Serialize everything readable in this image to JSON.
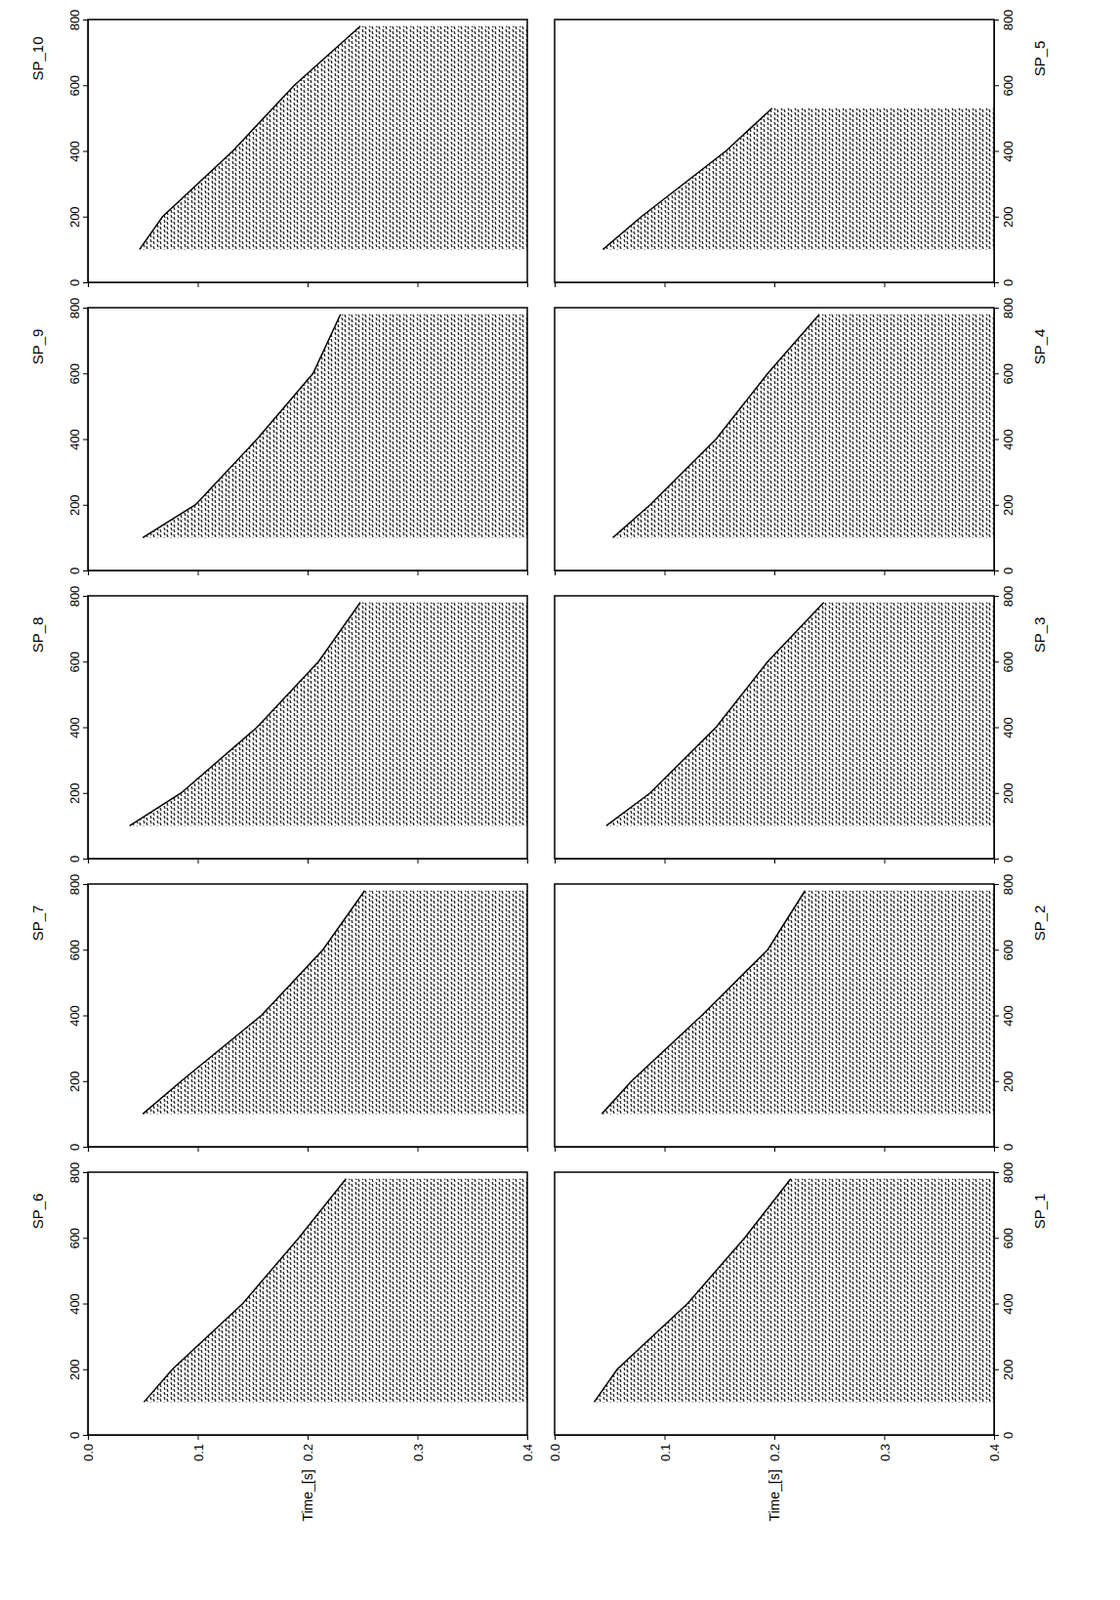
{
  "chart_data": [
    {
      "type": "line",
      "title": "SP_1",
      "x": [
        100,
        200,
        400,
        600,
        780
      ],
      "values": [
        0.036,
        0.057,
        0.121,
        0.173,
        0.215
      ],
      "xlim": [
        0,
        800
      ],
      "xticks": [
        0,
        200,
        400,
        600,
        800
      ],
      "ylim": [
        0,
        0.4
      ],
      "yticks": [
        {
          "value": 0,
          "label": "0.0"
        },
        {
          "value": 0.1,
          "label": "0.1"
        },
        {
          "value": 0.2,
          "label": "0.2"
        },
        {
          "value": 0.3,
          "label": "0.3"
        },
        {
          "value": 0.4,
          "label": "0.4"
        }
      ],
      "y_label": "Time_[s]"
    },
    {
      "type": "line",
      "title": "SP_2",
      "x": [
        100,
        200,
        400,
        600,
        780
      ],
      "values": [
        0.043,
        0.07,
        0.134,
        0.194,
        0.228
      ],
      "xlim": [
        0,
        800
      ],
      "xticks": [
        0,
        200,
        400,
        600,
        800
      ],
      "ylim": [
        0,
        0.4
      ],
      "yticks": [
        {
          "value": 0,
          "label": "0.0"
        },
        {
          "value": 0.1,
          "label": "0.1"
        },
        {
          "value": 0.2,
          "label": "0.2"
        },
        {
          "value": 0.3,
          "label": "0.3"
        },
        {
          "value": 0.4,
          "label": "0.4"
        }
      ],
      "tick_labels": "x"
    },
    {
      "type": "line",
      "title": "SP_3",
      "x": [
        100,
        200,
        400,
        600,
        780
      ],
      "values": [
        0.047,
        0.087,
        0.147,
        0.194,
        0.245
      ],
      "xlim": [
        0,
        800
      ],
      "xticks": [
        0,
        200,
        400,
        600,
        800
      ],
      "ylim": [
        0,
        0.4
      ],
      "yticks": [
        {
          "value": 0,
          "label": "0.0"
        },
        {
          "value": 0.1,
          "label": "0.1"
        },
        {
          "value": 0.2,
          "label": "0.2"
        },
        {
          "value": 0.3,
          "label": "0.3"
        },
        {
          "value": 0.4,
          "label": "0.4"
        }
      ],
      "tick_labels": "x"
    },
    {
      "type": "line",
      "title": "SP_4",
      "x": [
        100,
        200,
        400,
        600,
        780
      ],
      "values": [
        0.053,
        0.087,
        0.147,
        0.194,
        0.241
      ],
      "xlim": [
        0,
        800
      ],
      "xticks": [
        0,
        200,
        400,
        600,
        800
      ],
      "ylim": [
        0,
        0.4
      ],
      "yticks": [
        {
          "value": 0,
          "label": "0.0"
        },
        {
          "value": 0.1,
          "label": "0.1"
        },
        {
          "value": 0.2,
          "label": "0.2"
        },
        {
          "value": 0.3,
          "label": "0.3"
        },
        {
          "value": 0.4,
          "label": "0.4"
        }
      ],
      "tick_labels": "x"
    },
    {
      "type": "line",
      "title": "SP_5",
      "x": [
        100,
        200,
        400,
        530
      ],
      "values": [
        0.044,
        0.079,
        0.156,
        0.198
      ],
      "xlim": [
        0,
        800
      ],
      "xticks": [
        0,
        200,
        400,
        600,
        800
      ],
      "ylim": [
        0,
        0.4
      ],
      "yticks": [
        {
          "value": 0,
          "label": "0.0"
        },
        {
          "value": 0.1,
          "label": "0.1"
        },
        {
          "value": 0.2,
          "label": "0.2"
        },
        {
          "value": 0.3,
          "label": "0.3"
        },
        {
          "value": 0.4,
          "label": "0.4"
        }
      ],
      "tick_labels": "x"
    },
    {
      "type": "line",
      "title": "SP_6",
      "x": [
        100,
        200,
        400,
        600,
        780
      ],
      "values": [
        0.051,
        0.077,
        0.141,
        0.192,
        0.235
      ],
      "xlim": [
        0,
        800
      ],
      "xticks": [
        0,
        200,
        400,
        600,
        800
      ],
      "ylim": [
        0,
        0.4
      ],
      "yticks": [
        {
          "value": 0,
          "label": "0.0"
        },
        {
          "value": 0.1,
          "label": "0.1"
        },
        {
          "value": 0.2,
          "label": "0.2"
        },
        {
          "value": 0.3,
          "label": "0.3"
        },
        {
          "value": 0.4,
          "label": "0.4"
        }
      ],
      "y_label": "Time_[s]"
    },
    {
      "type": "line",
      "title": "SP_7",
      "x": [
        100,
        200,
        400,
        600,
        780
      ],
      "values": [
        0.05,
        0.085,
        0.158,
        0.214,
        0.252
      ],
      "xlim": [
        0,
        800
      ],
      "xticks": [
        0,
        200,
        400,
        600,
        800
      ],
      "ylim": [
        0,
        0.4
      ],
      "yticks": [
        {
          "value": 0,
          "label": "0.0"
        },
        {
          "value": 0.1,
          "label": "0.1"
        },
        {
          "value": 0.2,
          "label": "0.2"
        },
        {
          "value": 0.3,
          "label": "0.3"
        },
        {
          "value": 0.4,
          "label": "0.4"
        }
      ],
      "tick_labels": "x"
    },
    {
      "type": "line",
      "title": "SP_8",
      "x": [
        100,
        200,
        400,
        600,
        780
      ],
      "values": [
        0.038,
        0.085,
        0.154,
        0.21,
        0.248
      ],
      "xlim": [
        0,
        800
      ],
      "xticks": [
        0,
        200,
        400,
        600,
        800
      ],
      "ylim": [
        0,
        0.4
      ],
      "yticks": [
        {
          "value": 0,
          "label": "0.0"
        },
        {
          "value": 0.1,
          "label": "0.1"
        },
        {
          "value": 0.2,
          "label": "0.2"
        },
        {
          "value": 0.3,
          "label": "0.3"
        },
        {
          "value": 0.4,
          "label": "0.4"
        }
      ],
      "tick_labels": "x"
    },
    {
      "type": "line",
      "title": "SP_9",
      "x": [
        100,
        200,
        400,
        600,
        780
      ],
      "values": [
        0.05,
        0.098,
        0.154,
        0.205,
        0.23
      ],
      "xlim": [
        0,
        800
      ],
      "xticks": [
        0,
        200,
        400,
        600,
        800
      ],
      "ylim": [
        0,
        0.4
      ],
      "yticks": [
        {
          "value": 0,
          "label": "0.0"
        },
        {
          "value": 0.1,
          "label": "0.1"
        },
        {
          "value": 0.2,
          "label": "0.2"
        },
        {
          "value": 0.3,
          "label": "0.3"
        },
        {
          "value": 0.4,
          "label": "0.4"
        }
      ],
      "tick_labels": "x"
    },
    {
      "type": "line",
      "title": "SP_10",
      "x": [
        100,
        200,
        400,
        600,
        780
      ],
      "values": [
        0.047,
        0.068,
        0.132,
        0.188,
        0.248
      ],
      "xlim": [
        0,
        800
      ],
      "xticks": [
        0,
        200,
        400,
        600,
        800
      ],
      "ylim": [
        0,
        0.4
      ],
      "yticks": [
        {
          "value": 0,
          "label": "0.0"
        },
        {
          "value": 0.1,
          "label": "0.1"
        },
        {
          "value": 0.2,
          "label": "0.2"
        },
        {
          "value": 0.3,
          "label": "0.3"
        },
        {
          "value": 0.4,
          "label": "0.4"
        }
      ],
      "tick_labels": "x"
    }
  ]
}
